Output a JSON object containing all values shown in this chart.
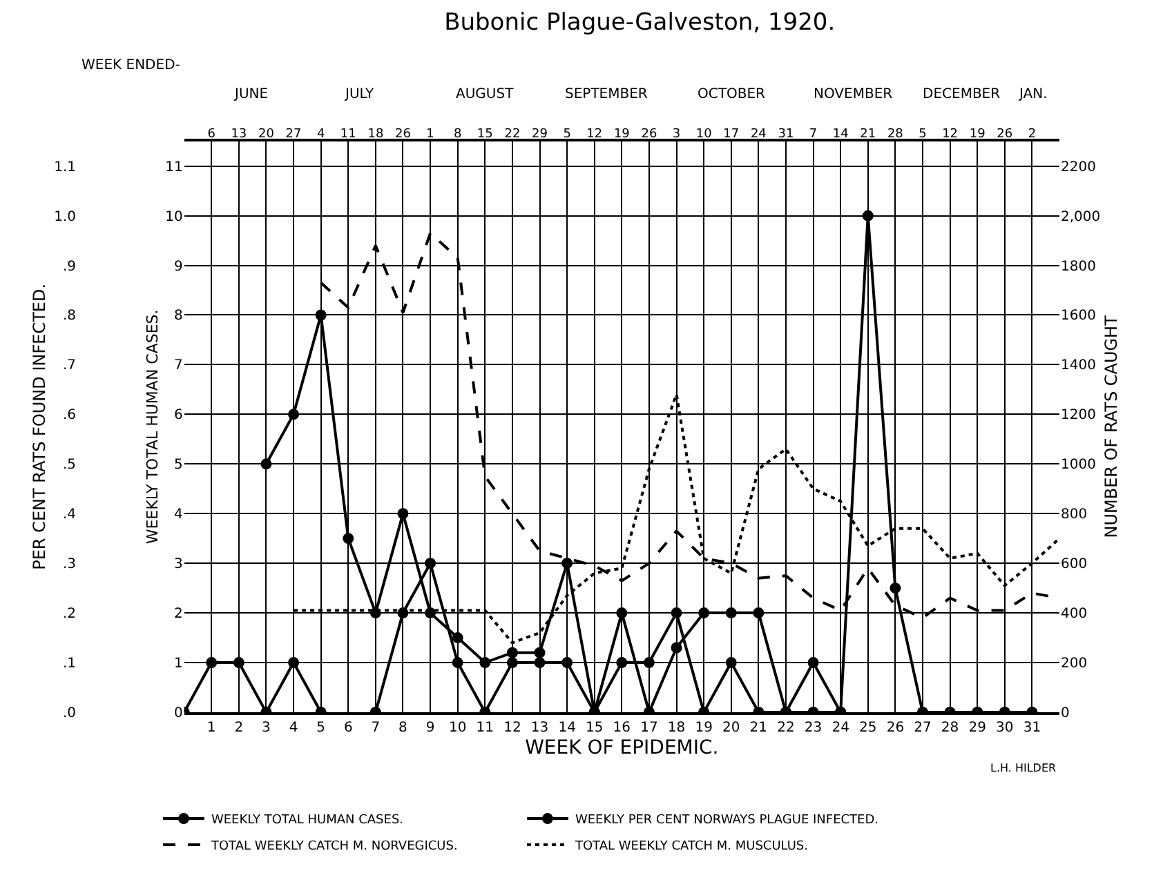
{
  "chart_data": {
    "type": "line",
    "title": "Bubonic Plague-Galveston, 1920.",
    "xlabel": "WEEK OF EPIDEMIC.",
    "ylabel": "PER CENT RATS FOUND INFECTED.",
    "y2label": "WEEKLY TOTAL HUMAN CASES.",
    "y3label": "NUMBER OF RATS CAUGHT",
    "x2label": "WEEK ENDED-",
    "x": [
      0,
      1,
      2,
      3,
      4,
      5,
      6,
      7,
      8,
      9,
      10,
      11,
      12,
      13,
      14,
      15,
      16,
      17,
      18,
      19,
      20,
      21,
      22,
      23,
      24,
      25,
      26,
      27,
      28,
      29,
      30,
      31,
      32
    ],
    "xlim": [
      0,
      32
    ],
    "xticks": [
      1,
      2,
      3,
      4,
      5,
      6,
      7,
      8,
      9,
      10,
      11,
      12,
      13,
      14,
      15,
      16,
      17,
      18,
      19,
      20,
      21,
      22,
      23,
      24,
      25,
      26,
      27,
      28,
      29,
      30,
      31
    ],
    "x2lim": [
      "1920-05-30",
      "1921-01-09"
    ],
    "x2ticks": [
      {
        "value": "1920-06-06",
        "label": "6"
      },
      {
        "value": "1920-06-13",
        "label": "13"
      },
      {
        "value": "1920-06-20",
        "label": "20"
      },
      {
        "value": "1920-06-27",
        "label": "27"
      },
      {
        "value": "1920-07-04",
        "label": "4"
      },
      {
        "value": "1920-07-11",
        "label": "11"
      },
      {
        "value": "1920-07-18",
        "label": "18"
      },
      {
        "value": "1920-07-25",
        "label": "26"
      },
      {
        "value": "1920-08-01",
        "label": "1"
      },
      {
        "value": "1920-08-08",
        "label": "8"
      },
      {
        "value": "1920-08-15",
        "label": "15"
      },
      {
        "value": "1920-08-22",
        "label": "22"
      },
      {
        "value": "1920-08-29",
        "label": "29"
      },
      {
        "value": "1920-09-05",
        "label": "5"
      },
      {
        "value": "1920-09-12",
        "label": "12"
      },
      {
        "value": "1920-09-19",
        "label": "19"
      },
      {
        "value": "1920-09-26",
        "label": "26"
      },
      {
        "value": "1920-10-03",
        "label": "3"
      },
      {
        "value": "1920-10-10",
        "label": "10"
      },
      {
        "value": "1920-10-17",
        "label": "17"
      },
      {
        "value": "1920-10-24",
        "label": "24"
      },
      {
        "value": "1920-10-31",
        "label": "31"
      },
      {
        "value": "1920-11-07",
        "label": "7"
      },
      {
        "value": "1920-11-14",
        "label": "14"
      },
      {
        "value": "1920-11-21",
        "label": "21"
      },
      {
        "value": "1920-11-28",
        "label": "28"
      },
      {
        "value": "1920-12-05",
        "label": "5"
      },
      {
        "value": "1920-12-12",
        "label": "12"
      },
      {
        "value": "1920-12-19",
        "label": "19"
      },
      {
        "value": "1920-12-26",
        "label": "26"
      },
      {
        "value": "1921-01-02",
        "label": "2"
      }
    ],
    "ylim": [
      0,
      1.15
    ],
    "yticks": [
      {
        "value": 0,
        "label": ".0"
      },
      {
        "value": 0.1,
        "label": ".1"
      },
      {
        "value": 0.2,
        "label": ".2"
      },
      {
        "value": 0.3,
        "label": ".3"
      },
      {
        "value": 0.4,
        "label": ".4"
      },
      {
        "value": 0.5,
        "label": ".5"
      },
      {
        "value": 0.6,
        "label": ".6"
      },
      {
        "value": 0.7,
        "label": ".7"
      },
      {
        "value": 0.8,
        "label": ".8"
      },
      {
        "value": 0.9,
        "label": ".9"
      },
      {
        "value": 1.0,
        "label": "1.0"
      },
      {
        "value": 1.1,
        "label": "1.1"
      }
    ],
    "y2lim": [
      0,
      11.5
    ],
    "y2ticks": [
      0,
      1,
      2,
      3,
      4,
      5,
      6,
      7,
      8,
      9,
      10,
      11
    ],
    "y3lim": [
      0,
      2300
    ],
    "y3ticks": [
      0,
      200,
      400,
      600,
      800,
      1000,
      1200,
      1400,
      1600,
      1800,
      {
        "value": 2000,
        "label": "2,000"
      },
      2200
    ],
    "grid": true,
    "legend": "bottom",
    "series": [
      {
        "name": "WEEKLY TOTAL HUMAN CASES.",
        "color": "#000000",
        "axis": "y2",
        "marker": "circle",
        "line_style": "solid",
        "values": [
          0,
          1,
          1,
          0,
          1,
          0,
          null,
          0,
          2,
          3,
          1,
          0,
          1,
          1,
          1,
          0,
          1,
          1,
          2,
          0,
          1,
          0,
          0,
          1,
          0,
          null,
          null,
          null,
          null,
          null,
          null,
          null,
          null
        ]
      },
      {
        "name": "WEEKLY PER CENT NORWAYS PLAGUE INFECTED.",
        "color": "#000000",
        "axis": "y",
        "marker": "circle",
        "line_style": "solid",
        "values": [
          null,
          null,
          null,
          0.5,
          0.6,
          0.8,
          0.35,
          0.2,
          0.4,
          0.2,
          0.15,
          0.1,
          0.12,
          0.12,
          0.3,
          0,
          0.2,
          0,
          0.13,
          0.2,
          0.2,
          0.2,
          0,
          0,
          0,
          1.0,
          0.25,
          0,
          0,
          0,
          0,
          0,
          null
        ]
      },
      {
        "name": "TOTAL WEEKLY CATCH M. NORVEGICUS.",
        "color": "#000000",
        "axis": "y3",
        "marker": "none",
        "line_style": "dashed",
        "values": [
          null,
          null,
          null,
          null,
          null,
          1730,
          1630,
          1880,
          1610,
          1930,
          1830,
          950,
          800,
          650,
          620,
          590,
          530,
          600,
          730,
          620,
          600,
          540,
          550,
          460,
          410,
          580,
          430,
          380,
          460,
          410,
          410,
          480,
          460
        ]
      },
      {
        "name": "TOTAL WEEKLY CATCH M. MUSCULUS.",
        "color": "#000000",
        "axis": "y3",
        "marker": "none",
        "line_style": "dotted",
        "values": [
          null,
          null,
          null,
          null,
          410,
          410,
          410,
          410,
          410,
          410,
          410,
          410,
          280,
          320,
          470,
          560,
          580,
          980,
          1280,
          620,
          560,
          980,
          1060,
          900,
          850,
          670,
          740,
          740,
          620,
          640,
          510,
          600,
          700
        ]
      }
    ],
    "annotations": [
      "JUNE",
      "JULY",
      "AUGUST",
      "SEPTEMBER",
      "OCTOBER",
      "NOVEMBER",
      "DECEMBER",
      "JAN.",
      "L.H. HILDER"
    ]
  }
}
